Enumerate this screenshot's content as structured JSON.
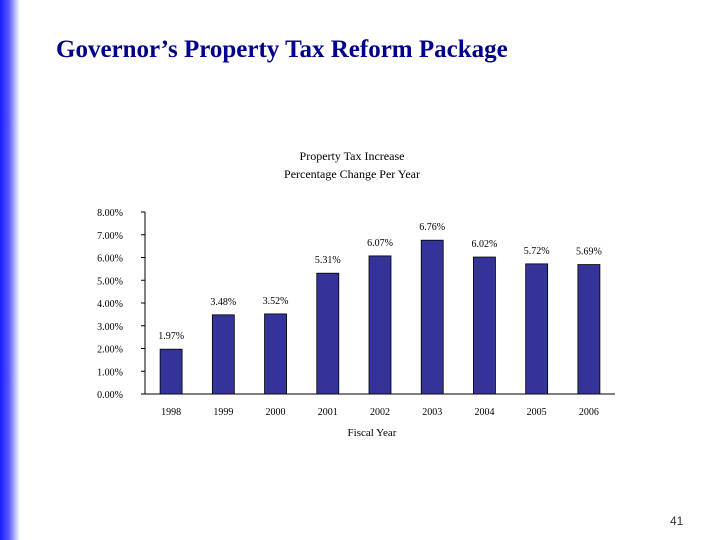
{
  "slide": {
    "title": "Governor’s Property Tax Reform Package",
    "page_number": "41"
  },
  "chart_data": {
    "type": "bar",
    "title": "Property Tax Increase",
    "subtitle": "Percentage Change Per Year",
    "xlabel": "Fiscal Year",
    "ylabel": "",
    "categories": [
      "1998",
      "1999",
      "2000",
      "2001",
      "2002",
      "2003",
      "2004",
      "2005",
      "2006"
    ],
    "values": [
      1.97,
      3.48,
      3.52,
      5.31,
      6.07,
      6.76,
      6.02,
      5.72,
      5.69
    ],
    "data_labels": [
      "1.97%",
      "3.48%",
      "3.52%",
      "5.31%",
      "6.07%",
      "6.76%",
      "6.02%",
      "5.72%",
      "5.69%"
    ],
    "yticks": [
      0,
      1,
      2,
      3,
      4,
      5,
      6,
      7,
      8
    ],
    "ytick_labels": [
      "0.00%",
      "1.00%",
      "2.00%",
      "3.00%",
      "4.00%",
      "5.00%",
      "6.00%",
      "7.00%",
      "8.00%"
    ],
    "ylim": [
      0,
      8
    ],
    "grid": false,
    "legend": "none",
    "colors": {
      "bar": "#333399",
      "bar_edge": "#000000"
    }
  }
}
